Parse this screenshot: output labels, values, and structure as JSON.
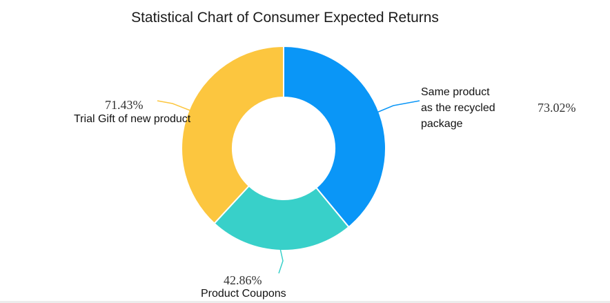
{
  "title": "Statistical Chart of Consumer Expected Returns",
  "chart_data": {
    "type": "pie",
    "variant": "donut",
    "title": "Statistical Chart of Consumer Expected Returns",
    "slices": [
      {
        "label_lines": [
          "Same product",
          "as the recycled",
          "package"
        ],
        "value": 73.02,
        "value_label": "73.02%",
        "color": "#0a96f7"
      },
      {
        "label_lines": [
          "Product Coupons"
        ],
        "value": 42.86,
        "value_label": "42.86%",
        "color": "#38d0c9"
      },
      {
        "label_lines": [
          "Trial Gift of new product"
        ],
        "value": 71.43,
        "value_label": "71.43%",
        "color": "#fcc63f"
      }
    ],
    "start_angle_deg": 0,
    "direction": "clockwise",
    "legend": "none"
  }
}
